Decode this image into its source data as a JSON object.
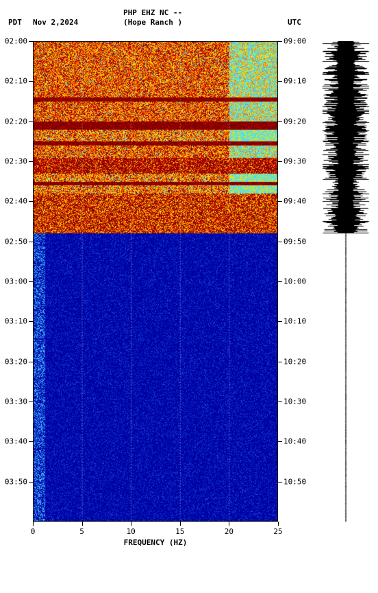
{
  "header": {
    "left_timezone": "PDT",
    "date": "Nov 2,2024",
    "station": "PHP EHZ NC --",
    "location": "(Hope Ranch )",
    "right_timezone": "UTC"
  },
  "spectrogram": {
    "type": "heatmap",
    "x_label": "FREQUENCY (HZ)",
    "x_ticks": [
      0,
      5,
      10,
      15,
      20,
      25
    ],
    "xlim": [
      0,
      25
    ],
    "y_left_ticks": [
      "02:00",
      "02:10",
      "02:20",
      "02:30",
      "02:40",
      "02:50",
      "03:00",
      "03:10",
      "03:20",
      "03:30",
      "03:40",
      "03:50"
    ],
    "y_right_ticks": [
      "09:00",
      "09:10",
      "09:20",
      "09:30",
      "09:40",
      "09:50",
      "10:00",
      "10:10",
      "10:20",
      "10:30",
      "10:40",
      "10:50"
    ],
    "total_minutes": 120,
    "transition_minute": 48,
    "colors": {
      "dark_red": "#800000",
      "red": "#d00000",
      "orange": "#ff7000",
      "yellow": "#ffe000",
      "cyan": "#40e0ff",
      "blue_dark": "#0000a0",
      "blue_mid": "#0020c0",
      "blue_light": "#2040e0",
      "lf_stripe": "#40c0ff"
    },
    "active_rows": [
      {
        "start": 0,
        "end": 14,
        "bands": "mixed_red_yellow_cyan"
      },
      {
        "start": 14,
        "end": 15,
        "bands": "dark_red_stripe"
      },
      {
        "start": 15,
        "end": 20,
        "bands": "mixed_red_yellow_cyan"
      },
      {
        "start": 20,
        "end": 22,
        "bands": "dark_red_stripe"
      },
      {
        "start": 22,
        "end": 25,
        "bands": "mixed_yellow_cyan"
      },
      {
        "start": 25,
        "end": 26,
        "bands": "dark_red_stripe"
      },
      {
        "start": 26,
        "end": 29,
        "bands": "mixed_red_yellow_cyan"
      },
      {
        "start": 29,
        "end": 33,
        "bands": "dark_red_heavy"
      },
      {
        "start": 33,
        "end": 35,
        "bands": "mixed_yellow_cyan"
      },
      {
        "start": 35,
        "end": 36,
        "bands": "dark_red_stripe"
      },
      {
        "start": 36,
        "end": 38,
        "bands": "mixed_yellow_cyan"
      },
      {
        "start": 38,
        "end": 48,
        "bands": "dark_red_heavy_yellow"
      }
    ],
    "grid_vertical_hz": [
      5,
      10,
      15,
      20
    ]
  },
  "waveform": {
    "peak_minute": 48,
    "amplitude_envelope": "high_0_48_silent_after",
    "color": "#000000"
  }
}
